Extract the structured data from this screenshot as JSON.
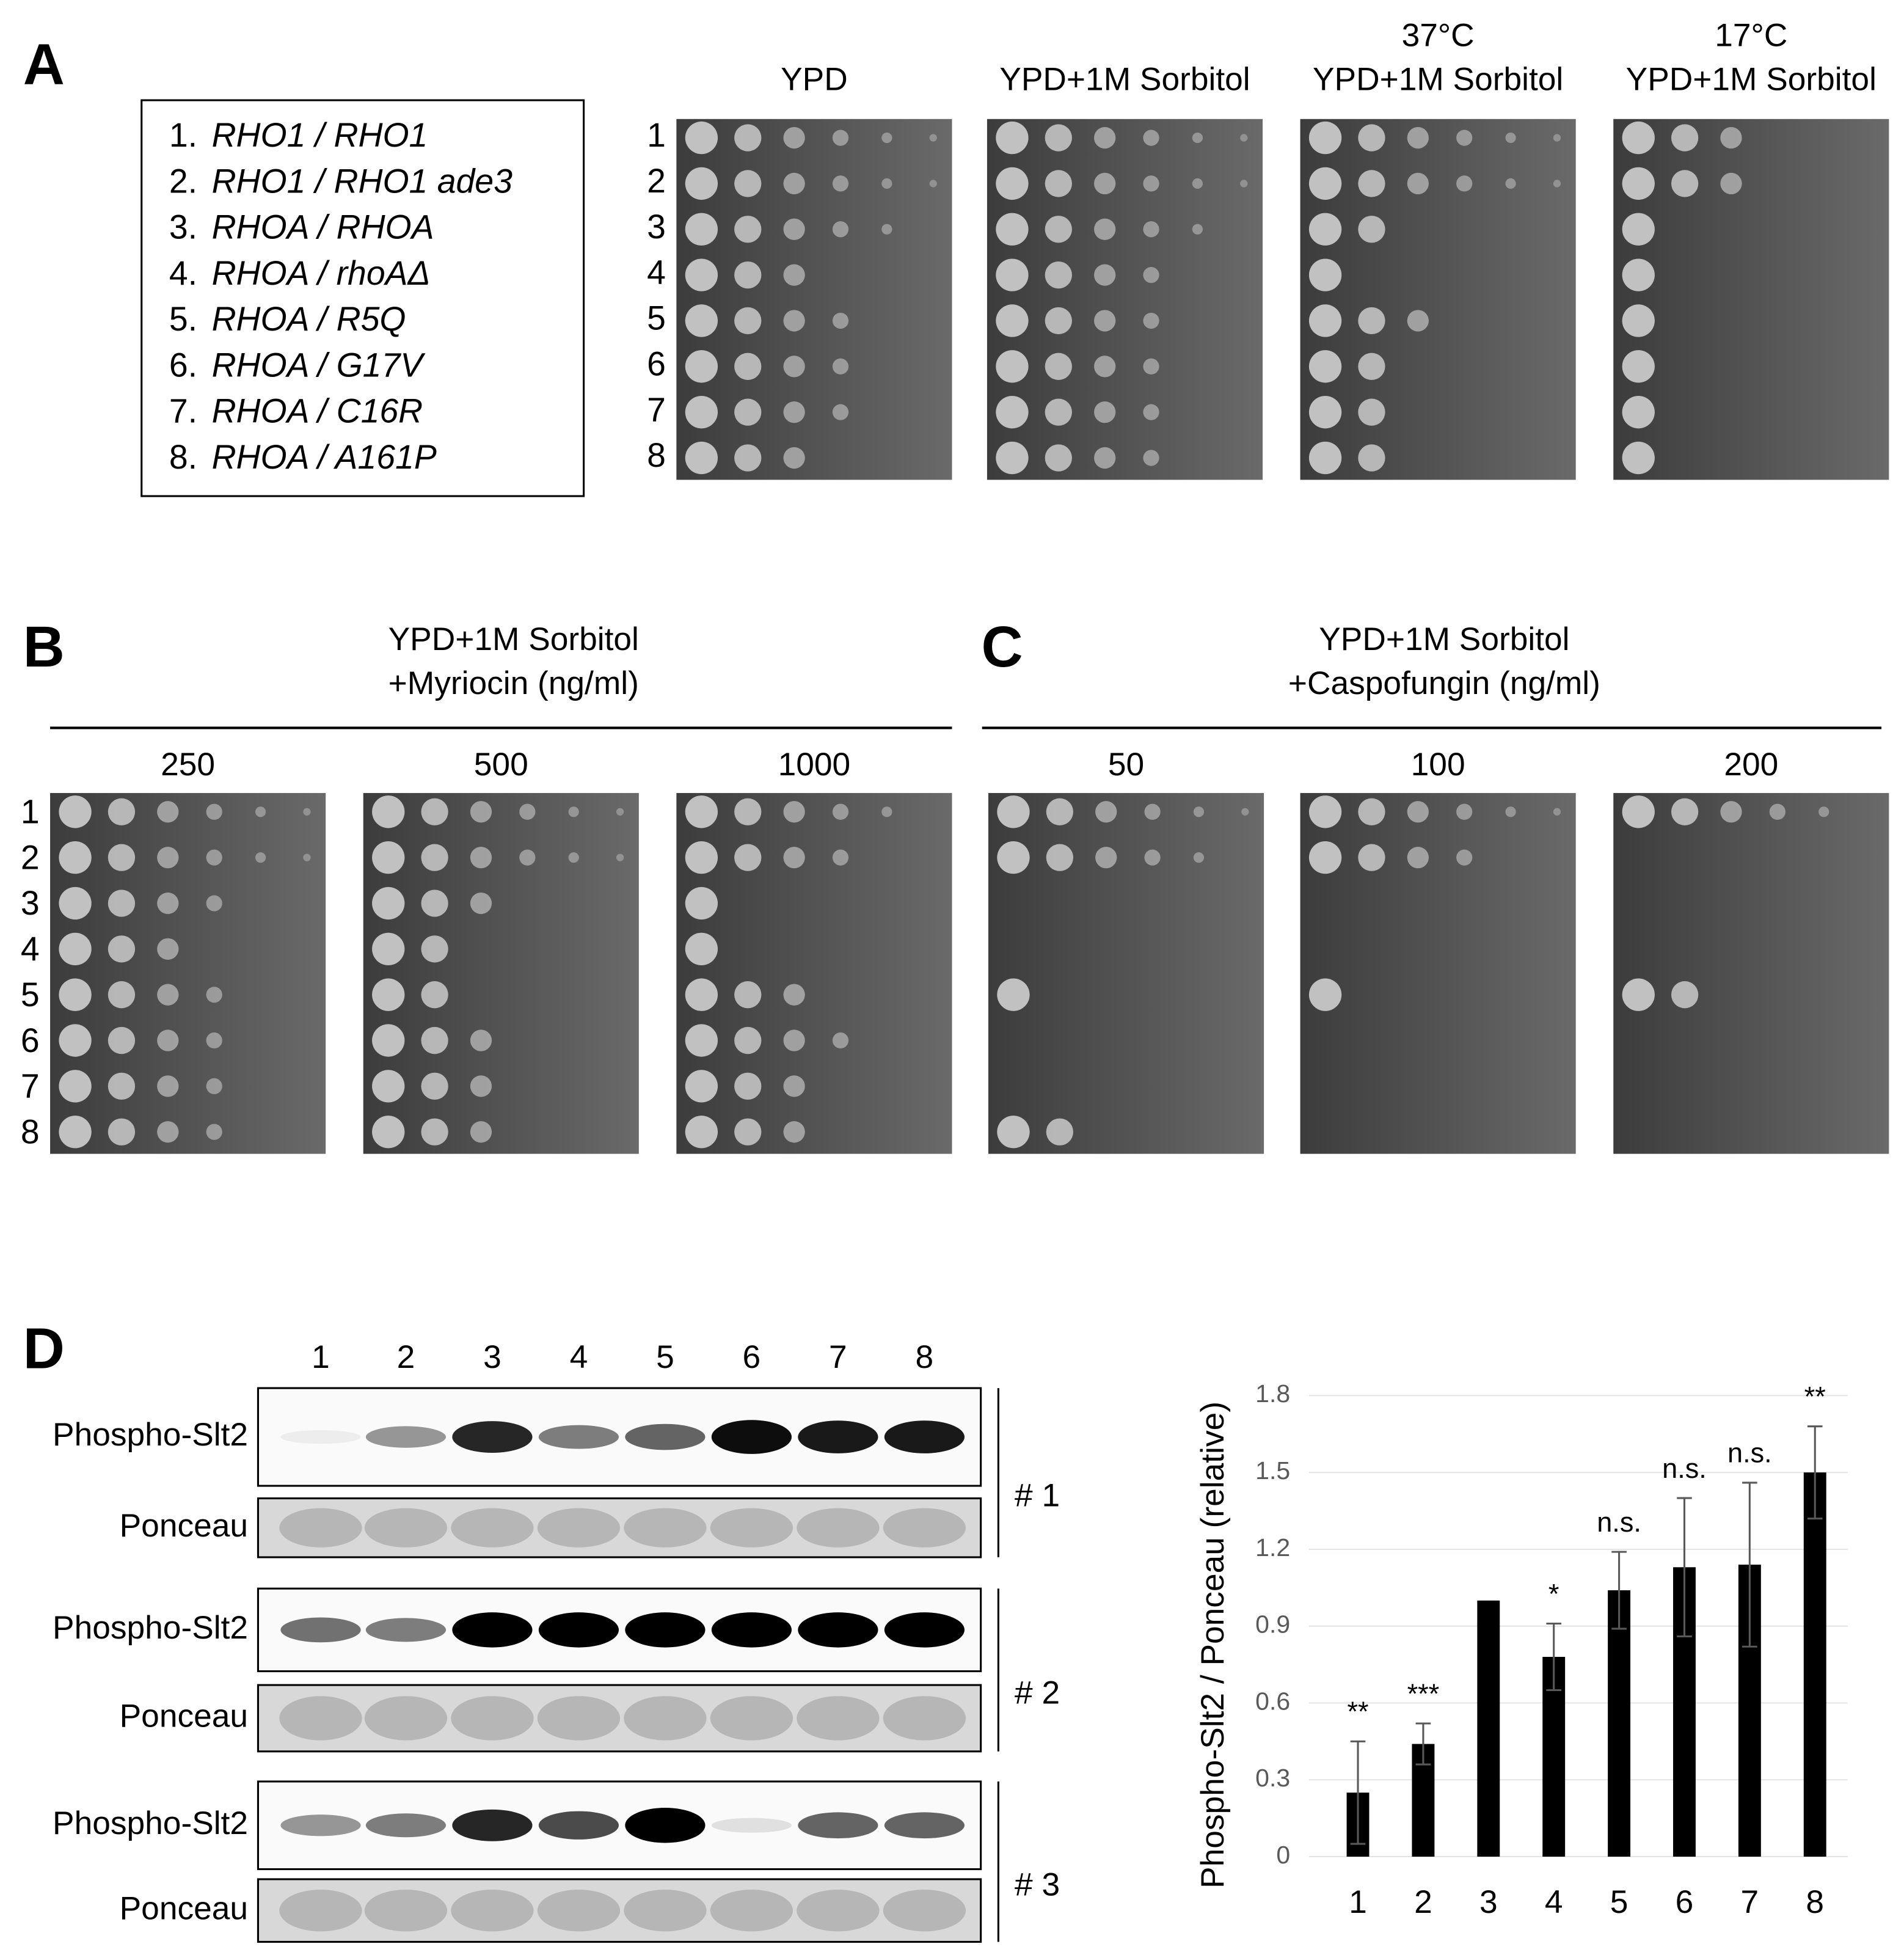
{
  "panel_labels": [
    "A",
    "B",
    "C",
    "D"
  ],
  "A": {
    "strains": [
      {
        "number": "1.",
        "genotype": "RHO1 / RHO1"
      },
      {
        "number": "2.",
        "genotype": "RHO1 / RHO1 ade3"
      },
      {
        "number": "3.",
        "genotype": "RHOA / RHOA"
      },
      {
        "number": "4.",
        "genotype": "RHOA / rhoAΔ"
      },
      {
        "number": "5.",
        "genotype": "RHOA / R5Q"
      },
      {
        "number": "6.",
        "genotype": "RHOA / G17V"
      },
      {
        "number": "7.",
        "genotype": "RHOA / C16R"
      },
      {
        "number": "8.",
        "genotype": "RHOA / A161P"
      }
    ],
    "plates": [
      [
        "YPD"
      ],
      [
        "YPD+1M Sorbitol"
      ],
      [
        "37°C",
        "YPD+1M Sorbitol"
      ],
      [
        "17°C",
        "YPD+1M Sorbitol"
      ]
    ],
    "row_labels": [
      "1",
      "2",
      "3",
      "4",
      "5",
      "6",
      "7",
      "8"
    ]
  },
  "B": {
    "title": [
      "YPD+1M Sorbitol",
      "+Myriocin (ng/ml)"
    ],
    "concentrations": [
      "250",
      "500",
      "1000"
    ],
    "row_labels": [
      "1",
      "2",
      "3",
      "4",
      "5",
      "6",
      "7",
      "8"
    ]
  },
  "C": {
    "title": [
      "YPD+1M Sorbitol",
      "+Caspofungin (ng/ml)"
    ],
    "concentrations": [
      "50",
      "100",
      "200"
    ]
  },
  "D": {
    "lanes": [
      "1",
      "2",
      "3",
      "4",
      "5",
      "6",
      "7",
      "8"
    ],
    "replicates": [
      {
        "label": "# 1",
        "rows": [
          "Phospho-Slt2",
          "Ponceau"
        ]
      },
      {
        "label": "# 2",
        "rows": [
          "Phospho-Slt2",
          "Ponceau"
        ]
      },
      {
        "label": "# 3",
        "rows": [
          "Phospho-Slt2",
          "Ponceau"
        ]
      }
    ]
  },
  "chart_data": {
    "type": "bar",
    "ylabel": "Phospho-Slt2 / Ponceau (relative)",
    "categories": [
      "1",
      "2",
      "3",
      "4",
      "5",
      "6",
      "7",
      "8"
    ],
    "values": [
      0.25,
      0.44,
      1.0,
      0.78,
      1.04,
      1.13,
      1.14,
      1.5
    ],
    "errors": [
      0.2,
      0.08,
      0,
      0.13,
      0.15,
      0.27,
      0.32,
      0.18
    ],
    "annotations": [
      "**",
      "***",
      null,
      "*",
      "n.s.",
      "n.s.",
      "n.s.",
      "**"
    ],
    "color": "#000000",
    "error_color": "#595959",
    "ylim": [
      0,
      1.8
    ],
    "yticks": [
      0,
      0.3,
      0.6,
      0.9,
      1.2,
      1.5,
      1.8
    ],
    "grid": true
  }
}
